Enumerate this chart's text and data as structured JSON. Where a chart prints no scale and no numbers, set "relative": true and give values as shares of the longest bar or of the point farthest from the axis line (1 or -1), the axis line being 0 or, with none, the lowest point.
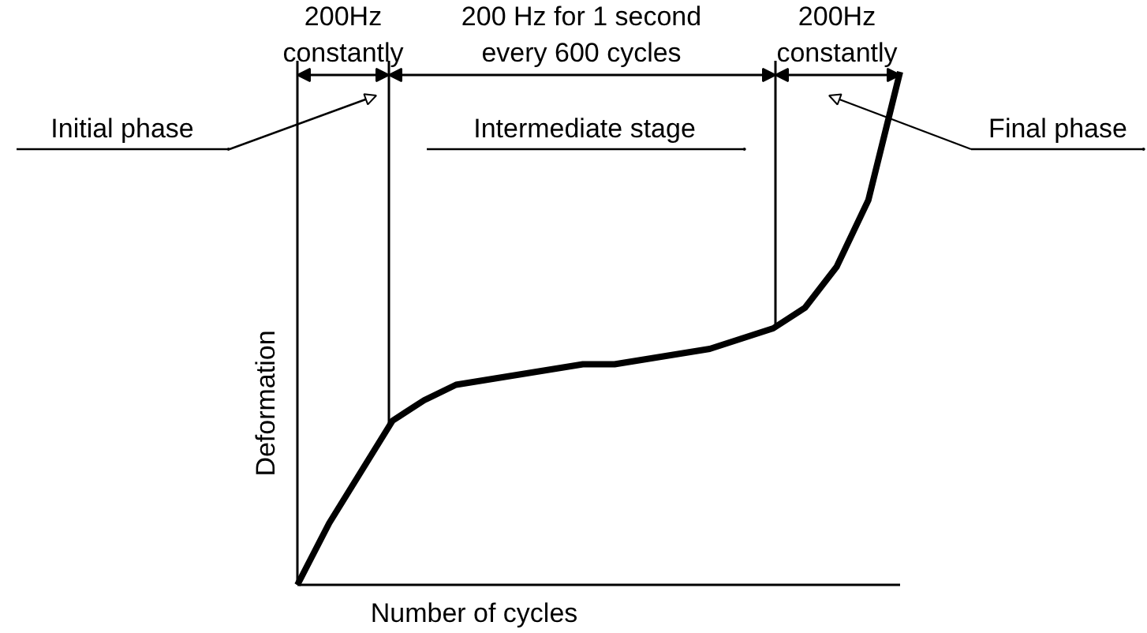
{
  "chart_data": {
    "type": "line",
    "relative": true,
    "xlabel": "Number of cycles",
    "ylabel": "Deformation",
    "categories": [
      null,
      null,
      null,
      null,
      null,
      null,
      null,
      null,
      null,
      null,
      null,
      null,
      null,
      null,
      null,
      null,
      null,
      null,
      null,
      null
    ],
    "series": [
      {
        "color": "#000000",
        "values": [
          0,
          0.12,
          0.22,
          0.32,
          0.36,
          0.39,
          0.4,
          0.41,
          0.42,
          0.43,
          0.43,
          0.44,
          0.45,
          0.46,
          0.48,
          0.5,
          0.54,
          0.62,
          0.75,
          1
        ]
      }
    ],
    "annotations": [
      "200Hz\nconstantly",
      "200 Hz for 1 second\nevery 600 cycles",
      "200Hz\nconstantly",
      "Initial phase",
      "Intermediate stage",
      "Final phase"
    ],
    "grid": false,
    "marker": "none",
    "line_style": "solid"
  }
}
